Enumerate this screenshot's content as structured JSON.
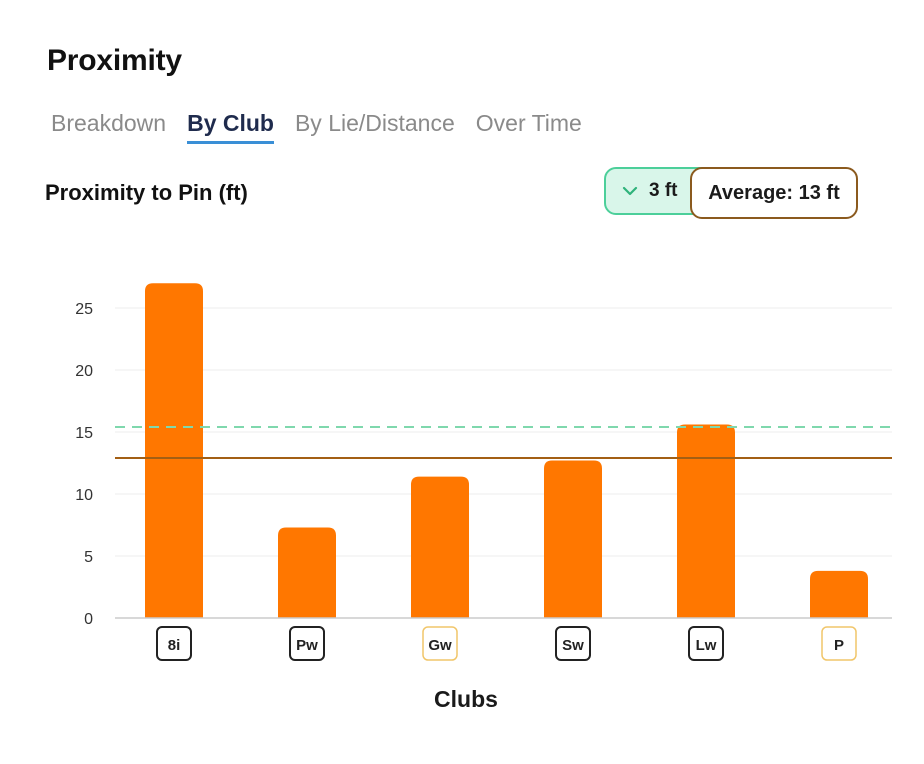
{
  "page": {
    "title": "Proximity"
  },
  "tabs": [
    {
      "label": "Breakdown",
      "active": false
    },
    {
      "label": "By Club",
      "active": true
    },
    {
      "label": "By Lie/Distance",
      "active": false
    },
    {
      "label": "Over Time",
      "active": false
    }
  ],
  "chart_header": {
    "title": "Proximity to Pin (ft)",
    "delta_icon": "chevron-down-icon",
    "delta_label": "3 ft",
    "average_label": "Average: 13 ft"
  },
  "colors": {
    "bar": "#ff7700",
    "average_line": "#a35f14",
    "reference_line": "#7fd8ad",
    "accent_tab": "#3a8fd6"
  },
  "chart_data": {
    "type": "bar",
    "title": "Proximity to Pin (ft)",
    "xlabel": "Clubs",
    "ylabel": "",
    "categories": [
      "8i",
      "Pw",
      "Gw",
      "Sw",
      "Lw",
      "P"
    ],
    "values": [
      27,
      7.3,
      11.4,
      12.7,
      15.6,
      3.8
    ],
    "ylim": [
      0,
      28
    ],
    "yticks": [
      0,
      5,
      10,
      15,
      20,
      25
    ],
    "reference_lines": [
      {
        "kind": "average",
        "value": 12.9,
        "style": "solid"
      },
      {
        "kind": "target",
        "value": 15.4,
        "style": "dashed"
      }
    ],
    "category_highlight": [
      false,
      false,
      true,
      false,
      false,
      true
    ],
    "grid": true,
    "legend": "none"
  }
}
